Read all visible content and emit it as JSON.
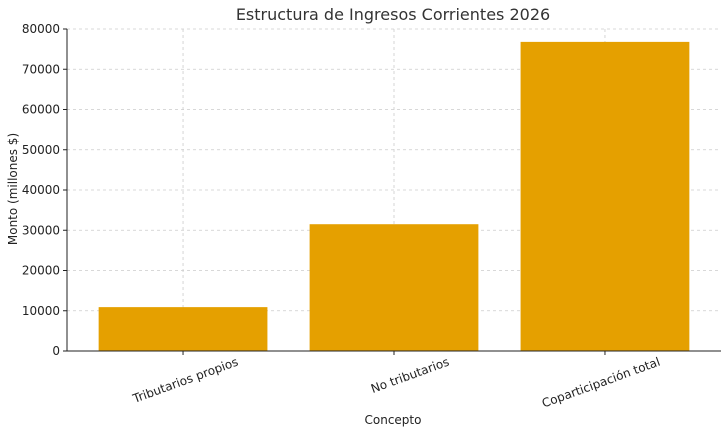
{
  "chart_data": {
    "type": "bar",
    "title": "Estructura de Ingresos Corrientes 2026",
    "xlabel": "Concepto",
    "ylabel": "Monto (millones $)",
    "categories": [
      "Tributarios propios",
      "No tributarios",
      "Coparticipación total"
    ],
    "values": [
      10900,
      31500,
      76800
    ],
    "ylim": [
      0,
      80000
    ],
    "yticks": [
      0,
      10000,
      20000,
      30000,
      40000,
      50000,
      60000,
      70000,
      80000
    ],
    "ytick_labels": [
      "0",
      "10000",
      "20000",
      "30000",
      "40000",
      "50000",
      "60000",
      "70000",
      "80000"
    ],
    "bar_color": "#e5a000",
    "grid": true,
    "legend": "none"
  }
}
